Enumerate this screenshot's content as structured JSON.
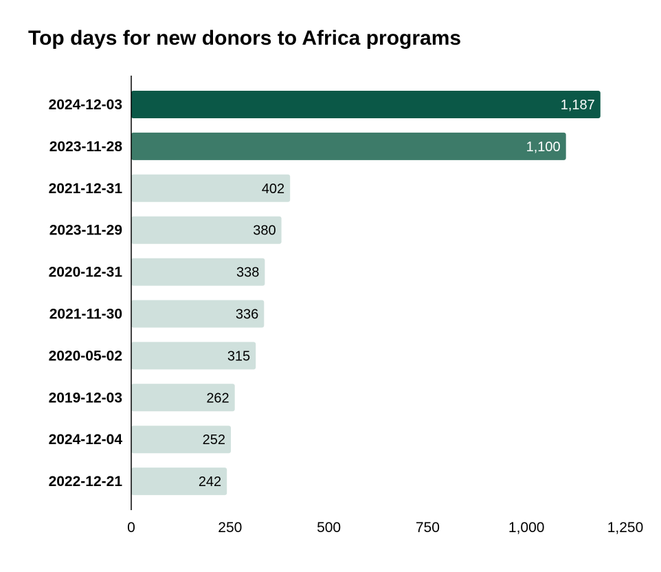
{
  "chart_data": {
    "type": "bar",
    "orientation": "horizontal",
    "title": "Top days for new donors to Africa programs",
    "xlabel": "",
    "ylabel": "",
    "categories": [
      "2024-12-03",
      "2023-11-28",
      "2021-12-31",
      "2023-11-29",
      "2020-12-31",
      "2021-11-30",
      "2020-05-02",
      "2019-12-03",
      "2024-12-04",
      "2022-12-21"
    ],
    "values": [
      1187,
      1100,
      402,
      380,
      338,
      336,
      315,
      262,
      252,
      242
    ],
    "value_labels": [
      "1,187",
      "1,100",
      "402",
      "380",
      "338",
      "336",
      "315",
      "262",
      "252",
      "242"
    ],
    "xlim": [
      0,
      1250
    ],
    "x_ticks": [
      0,
      250,
      500,
      750,
      1000,
      1250
    ],
    "x_tick_labels": [
      "0",
      "250",
      "500",
      "750",
      "1,000",
      "1,250"
    ],
    "grid": false,
    "bar_colors": [
      "#0b5847",
      "#3d7b69",
      "#cfe0dc",
      "#cfe0dc",
      "#cfe0dc",
      "#cfe0dc",
      "#cfe0dc",
      "#cfe0dc",
      "#cfe0dc",
      "#cfe0dc"
    ],
    "value_label_colors": [
      "#ffffff",
      "#ffffff",
      "#000000",
      "#000000",
      "#000000",
      "#000000",
      "#000000",
      "#000000",
      "#000000",
      "#000000"
    ],
    "axis_color": "#000000"
  }
}
